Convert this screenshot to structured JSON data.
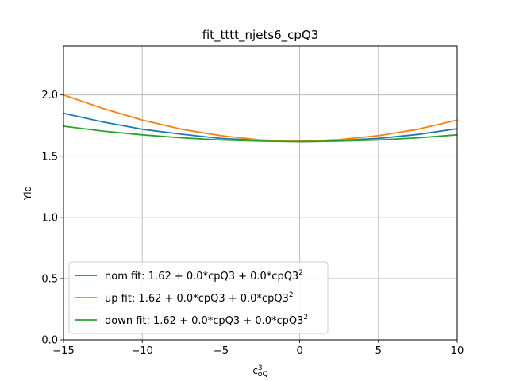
{
  "chart_data": {
    "type": "line",
    "title": "fit_tttt_njets6_cpQ3",
    "xlabel_base": "c",
    "xlabel_sup": "3",
    "xlabel_sub": "φQ",
    "ylabel": "Yld",
    "xlim": [
      -15,
      10
    ],
    "ylim": [
      0,
      2.4
    ],
    "xticks": [
      -15,
      -10,
      -5,
      0,
      5,
      10
    ],
    "xtick_labels": [
      "−15",
      "−10",
      "−5",
      "0",
      "5",
      "10"
    ],
    "yticks": [
      0.0,
      0.5,
      1.0,
      1.5,
      2.0
    ],
    "ytick_labels": [
      "0.0",
      "0.5",
      "1.0",
      "1.5",
      "2.0"
    ],
    "grid": true,
    "legend_position": "lower-left",
    "series": [
      {
        "name": "nom fit: 1.62 + 0.0*cpQ3 + 0.0*cpQ3",
        "name_sup": "2",
        "color": "#1f77b4",
        "x": [
          -15,
          -12.5,
          -10,
          -7.5,
          -5,
          -2.5,
          0,
          2.5,
          5,
          7.5,
          10
        ],
        "y": [
          1.85,
          1.78,
          1.72,
          1.68,
          1.645,
          1.628,
          1.622,
          1.628,
          1.645,
          1.678,
          1.725
        ]
      },
      {
        "name": "up fit: 1.62 + 0.0*cpQ3 + 0.0*cpQ3",
        "name_sup": "2",
        "color": "#ff7f0e",
        "x": [
          -15,
          -12.5,
          -10,
          -7.5,
          -5,
          -2.5,
          0,
          2.5,
          5,
          7.5,
          10
        ],
        "y": [
          2.0,
          1.89,
          1.795,
          1.72,
          1.668,
          1.632,
          1.62,
          1.635,
          1.668,
          1.72,
          1.795
        ]
      },
      {
        "name": "down fit: 1.62 + 0.0*cpQ3 + 0.0*cpQ3",
        "name_sup": "2",
        "color": "#2ca02c",
        "x": [
          -15,
          -12.5,
          -10,
          -7.5,
          -5,
          -2.5,
          0,
          2.5,
          5,
          7.5,
          10
        ],
        "y": [
          1.745,
          1.705,
          1.675,
          1.65,
          1.632,
          1.622,
          1.618,
          1.622,
          1.632,
          1.65,
          1.675
        ]
      }
    ]
  }
}
